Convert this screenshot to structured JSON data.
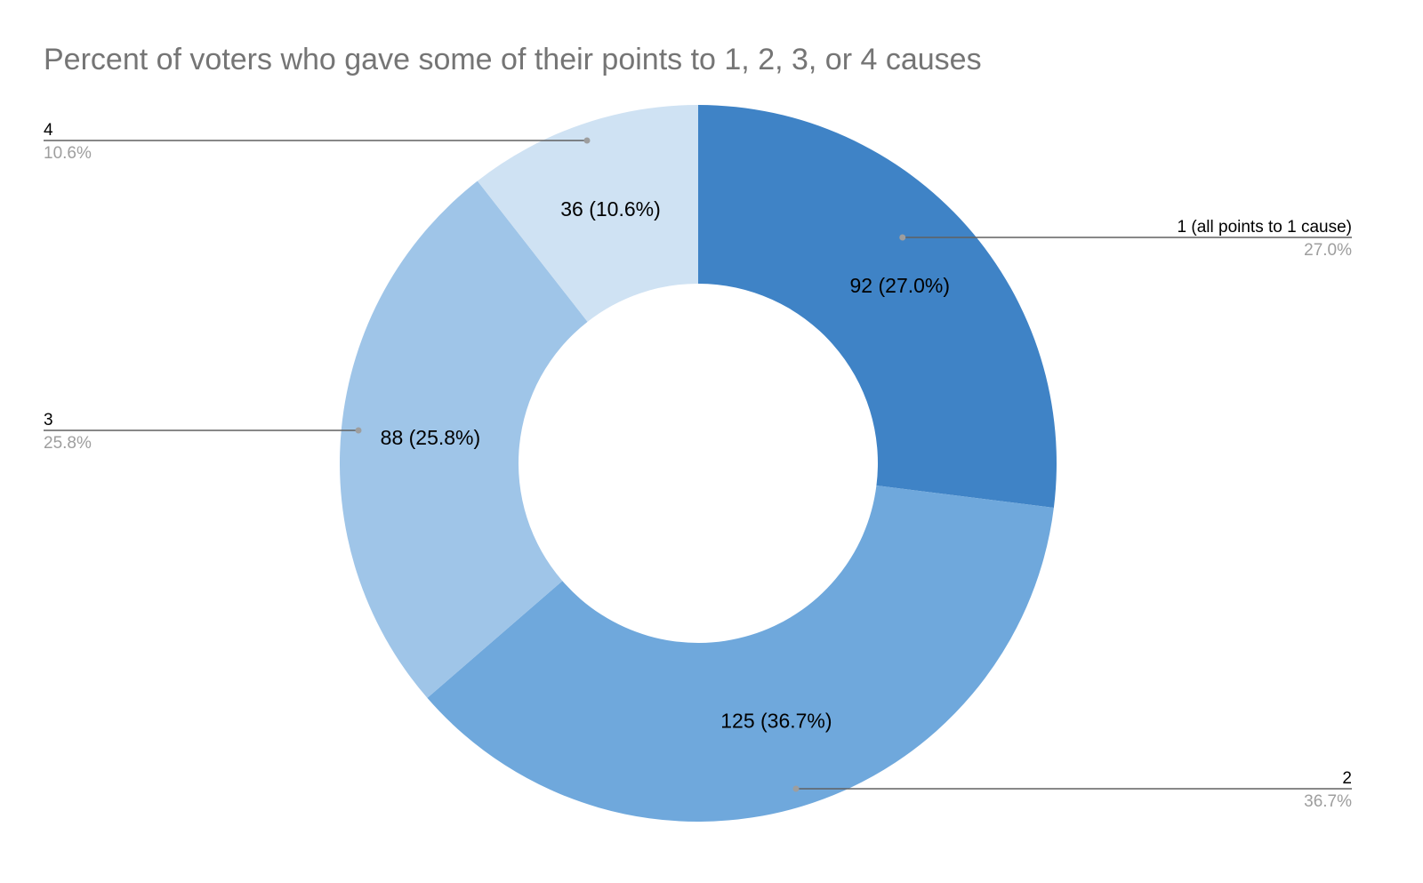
{
  "chart_data": {
    "type": "pie",
    "donut": true,
    "title": "Percent of voters who gave some of their points to 1, 2, 3, or 4 causes",
    "categories": [
      "1 (all points to 1 cause)",
      "2",
      "3",
      "4"
    ],
    "values": [
      92,
      125,
      88,
      36
    ],
    "percent_labels": [
      "27.0%",
      "36.7%",
      "25.8%",
      "10.6%"
    ],
    "slice_labels": [
      "92 (27.0%)",
      "125 (36.7%)",
      "88 (25.8%)",
      "36 (10.6%)"
    ],
    "colors": [
      "#3f83c6",
      "#6fa8dc",
      "#9fc5e8",
      "#cfe2f3"
    ],
    "legend": "callouts"
  }
}
